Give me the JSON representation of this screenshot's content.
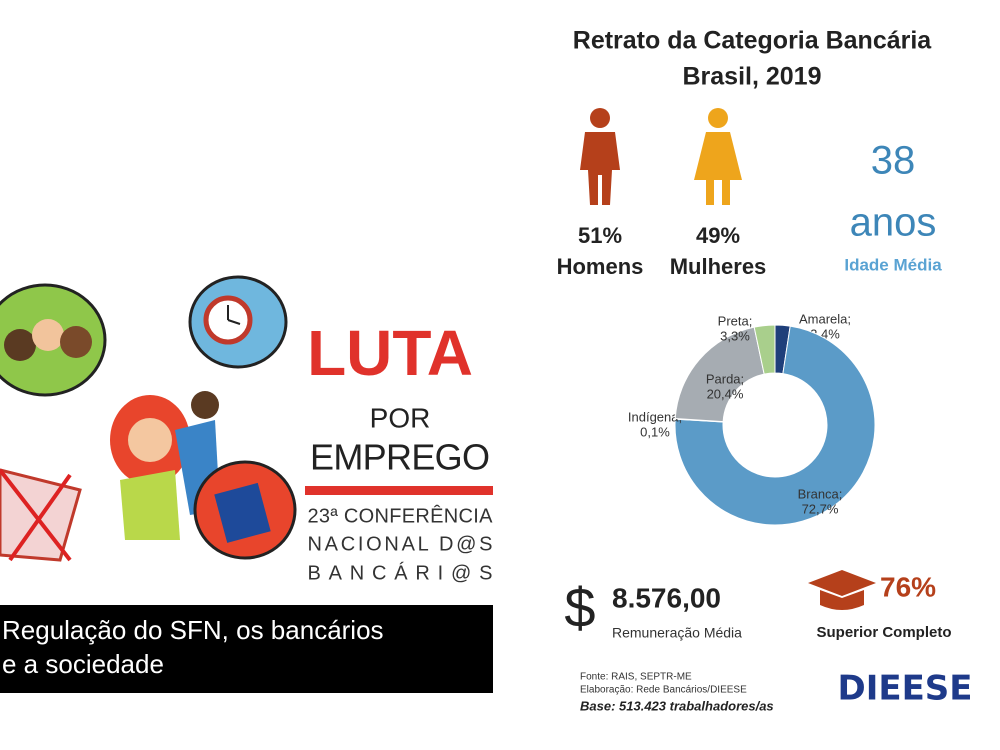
{
  "poster": {
    "luta": "LUTA",
    "por": "POR",
    "emprego": "EMPREGO",
    "conf1": "23ª CONFERÊNCIA",
    "conf2": "NACIONAL D@S",
    "conf3": "BANCÁRI@S",
    "banner1": "Regulação do SFN, os bancários",
    "banner2": "e a sociedade"
  },
  "info": {
    "title1": "Retrato da Categoria Bancária",
    "title2": "Brasil, 2019",
    "men_pct": "51%",
    "men": "Homens",
    "women_pct": "49%",
    "women": "Mulheres",
    "age": "38",
    "age_unit": "anos",
    "age_label": "Idade Média",
    "currency": "$",
    "salary": "8.576,00",
    "salary_label": "Remuneração Média",
    "higher_pct": "76%",
    "higher_label": "Superior Completo",
    "source1": "Fonte: RAIS, SEPTR-ME",
    "source2": "Elaboração: Rede Bancários/DIEESE",
    "base": "Base:  513.423 trabalhadores/as",
    "logo": "DIEESE"
  },
  "chart_data": {
    "type": "donut",
    "categories": [
      "Amarela;",
      "Branca;",
      "Indígena;",
      "Parda;",
      "Preta;"
    ],
    "values": [
      2.4,
      72.7,
      0.1,
      20.4,
      3.3
    ],
    "value_labels": [
      "2,4%",
      "72,7%",
      "0,1%",
      "20,4%",
      "3,3%"
    ],
    "colors": [
      "#1f3f7a",
      "#5b9bc8",
      "#4a6fa5",
      "#a6acb2",
      "#a9cf8c"
    ]
  }
}
